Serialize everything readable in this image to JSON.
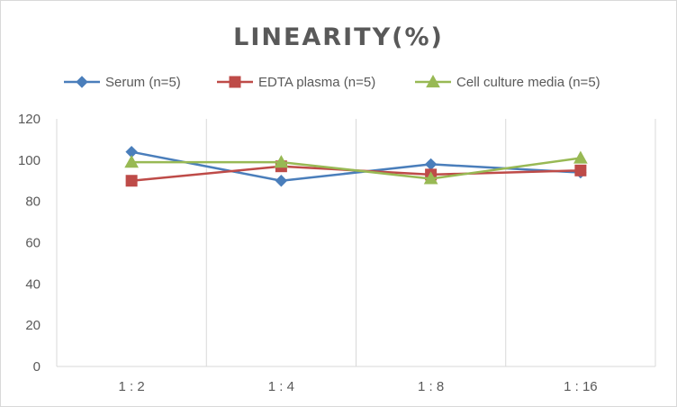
{
  "chart_data": {
    "type": "line",
    "title": "LINEARITY(%)",
    "xlabel": "",
    "ylabel": "",
    "categories": [
      "1:2",
      "1:4",
      "1:8",
      "1:16"
    ],
    "ylim": [
      0,
      120
    ],
    "yticks": [
      0,
      20,
      40,
      60,
      80,
      100,
      120
    ],
    "grid": "vertical",
    "legend_position": "top",
    "series": [
      {
        "name": "Serum (n=5)",
        "values": [
          104,
          90,
          98,
          94
        ],
        "color": "#4a7ebb",
        "marker": "diamond"
      },
      {
        "name": "EDTA plasma (n=5)",
        "values": [
          90,
          97,
          93,
          95
        ],
        "color": "#be4b48",
        "marker": "square"
      },
      {
        "name": "Cell culture media (n=5)",
        "values": [
          99,
          99,
          91,
          101
        ],
        "color": "#98b954",
        "marker": "triangle"
      }
    ]
  }
}
